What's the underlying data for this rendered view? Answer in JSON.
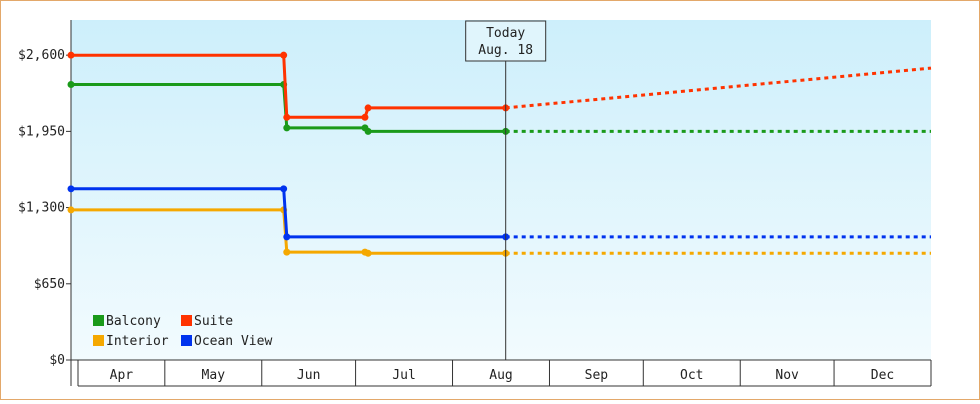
{
  "chart_data": {
    "type": "line",
    "title": "",
    "xlabel": "",
    "ylabel": "",
    "ylim": [
      0,
      2900
    ],
    "yticks": [
      0,
      650,
      1300,
      1950,
      2600
    ],
    "ytick_labels": [
      "$0",
      "$650",
      "$1,300",
      "$1,950",
      "$2,600"
    ],
    "x_months": [
      "Apr",
      "May",
      "Jun",
      "Jul",
      "Aug",
      "Sep",
      "Oct",
      "Nov",
      "Dec"
    ],
    "x_domain": [
      "2025-04-01",
      "2026-01-01"
    ],
    "today": {
      "line1": "Today",
      "line2": "Aug. 18",
      "date": "2025-08-18"
    },
    "legend": {
      "placement": "bottom-left"
    },
    "series": [
      {
        "name": "Balcony",
        "color": "#1a9a1a",
        "points": [
          {
            "date": "2025-04-01",
            "value": 2350
          },
          {
            "date": "2025-06-08",
            "value": 2350
          },
          {
            "date": "2025-06-09",
            "value": 1980
          },
          {
            "date": "2025-07-04",
            "value": 1980
          },
          {
            "date": "2025-07-05",
            "value": 1950
          },
          {
            "date": "2025-08-18",
            "value": 1950
          }
        ],
        "forecast": [
          {
            "date": "2025-08-18",
            "value": 1950
          },
          {
            "date": "2026-01-01",
            "value": 1950
          }
        ]
      },
      {
        "name": "Suite",
        "color": "#ff3300",
        "points": [
          {
            "date": "2025-04-01",
            "value": 2600
          },
          {
            "date": "2025-06-08",
            "value": 2600
          },
          {
            "date": "2025-06-09",
            "value": 2070
          },
          {
            "date": "2025-07-04",
            "value": 2070
          },
          {
            "date": "2025-07-05",
            "value": 2150
          },
          {
            "date": "2025-08-18",
            "value": 2150
          }
        ],
        "forecast": [
          {
            "date": "2025-08-18",
            "value": 2150
          },
          {
            "date": "2026-01-01",
            "value": 2490
          }
        ]
      },
      {
        "name": "Interior",
        "color": "#f5a800",
        "points": [
          {
            "date": "2025-04-01",
            "value": 1280
          },
          {
            "date": "2025-06-08",
            "value": 1280
          },
          {
            "date": "2025-06-09",
            "value": 920
          },
          {
            "date": "2025-07-04",
            "value": 920
          },
          {
            "date": "2025-07-05",
            "value": 910
          },
          {
            "date": "2025-08-18",
            "value": 910
          }
        ],
        "forecast": [
          {
            "date": "2025-08-18",
            "value": 910
          },
          {
            "date": "2026-01-01",
            "value": 910
          }
        ]
      },
      {
        "name": "Ocean View",
        "color": "#0033ee",
        "points": [
          {
            "date": "2025-04-01",
            "value": 1460
          },
          {
            "date": "2025-06-08",
            "value": 1460
          },
          {
            "date": "2025-06-09",
            "value": 1050
          },
          {
            "date": "2025-08-18",
            "value": 1050
          }
        ],
        "forecast": [
          {
            "date": "2025-08-18",
            "value": 1050
          },
          {
            "date": "2026-01-01",
            "value": 1050
          }
        ]
      }
    ]
  }
}
